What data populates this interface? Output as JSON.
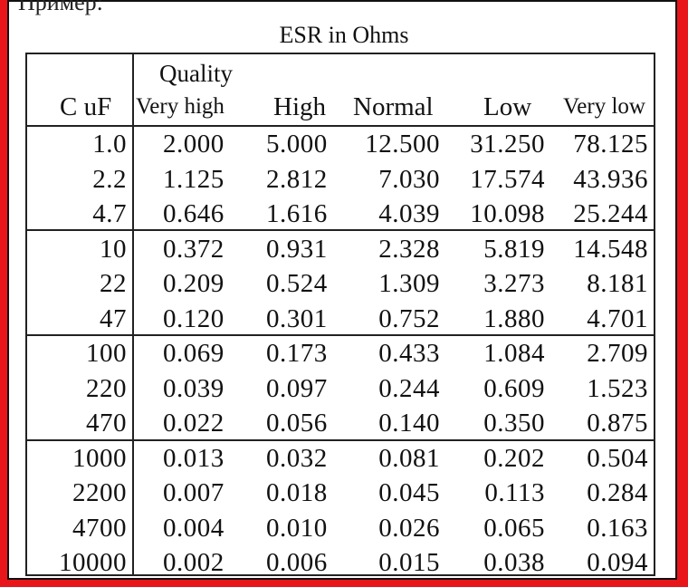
{
  "page": {
    "partial_text": "Пример:",
    "caption": "ESR in Ohms"
  },
  "table": {
    "quality_label": "Quality",
    "headers": [
      "C  uF",
      "Very high",
      "High",
      "Normal",
      "Low",
      "Very low"
    ],
    "groups": [
      [
        [
          "1.0",
          "2.000",
          "5.000",
          "12.500",
          "31.250",
          "78.125"
        ],
        [
          "2.2",
          "1.125",
          "2.812",
          "7.030",
          "17.574",
          "43.936"
        ],
        [
          "4.7",
          "0.646",
          "1.616",
          "4.039",
          "10.098",
          "25.244"
        ]
      ],
      [
        [
          "10",
          "0.372",
          "0.931",
          "2.328",
          "5.819",
          "14.548"
        ],
        [
          "22",
          "0.209",
          "0.524",
          "1.309",
          "3.273",
          "8.181"
        ],
        [
          "47",
          "0.120",
          "0.301",
          "0.752",
          "1.880",
          "4.701"
        ]
      ],
      [
        [
          "100",
          "0.069",
          "0.173",
          "0.433",
          "1.084",
          "2.709"
        ],
        [
          "220",
          "0.039",
          "0.097",
          "0.244",
          "0.609",
          "1.523"
        ],
        [
          "470",
          "0.022",
          "0.056",
          "0.140",
          "0.350",
          "0.875"
        ]
      ],
      [
        [
          "1000",
          "0.013",
          "0.032",
          "0.081",
          "0.202",
          "0.504"
        ],
        [
          "2200",
          "0.007",
          "0.018",
          "0.045",
          "0.113",
          "0.284"
        ],
        [
          "4700",
          "0.004",
          "0.010",
          "0.026",
          "0.065",
          "0.163"
        ],
        [
          "10000",
          "0.002",
          "0.006",
          "0.015",
          "0.038",
          "0.094"
        ]
      ]
    ]
  },
  "colors": {
    "outer_border": "#e8161b",
    "background": "#ffffff",
    "text": "#111111"
  }
}
